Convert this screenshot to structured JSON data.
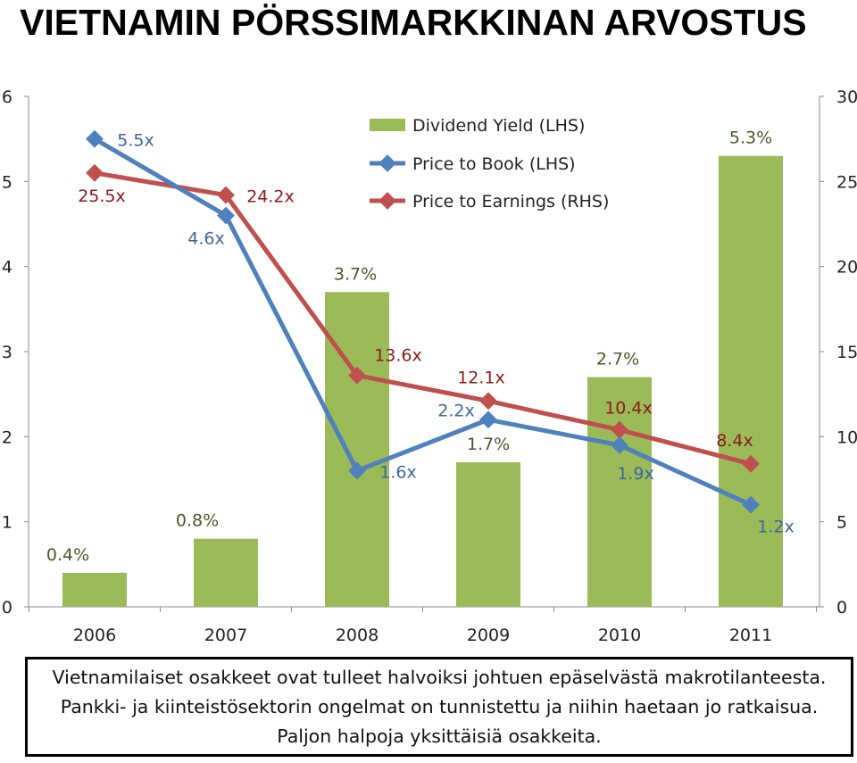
{
  "title": "VIETNAMIN PÖRSSIMARKKINAN ARVOSTUS",
  "chart_data": {
    "type": "bar+line",
    "categories": [
      "2006",
      "2007",
      "2008",
      "2009",
      "2010",
      "2011"
    ],
    "left_axis": {
      "ylim": [
        0,
        6
      ],
      "ticks": [
        "0",
        "1",
        "2",
        "3",
        "4",
        "5",
        "6"
      ]
    },
    "right_axis": {
      "ylim": [
        0,
        30
      ],
      "ticks": [
        "0",
        "5",
        "10",
        "15",
        "20",
        "25",
        "30"
      ]
    },
    "grid": false,
    "legend_position": "top-center",
    "series": [
      {
        "name": "Dividend Yield (LHS)",
        "type": "bar",
        "axis": "left",
        "color": "#9bbb59",
        "values": [
          0.4,
          0.8,
          3.7,
          1.7,
          2.7,
          5.3
        ],
        "labels": [
          "0.4%",
          "0.8%",
          "3.7%",
          "1.7%",
          "2.7%",
          "5.3%"
        ]
      },
      {
        "name": "Price to Book (LHS)",
        "type": "line",
        "axis": "left",
        "color": "#4f81bd",
        "values": [
          5.5,
          4.6,
          1.6,
          2.2,
          1.9,
          1.2
        ],
        "labels": [
          "5.5x",
          "4.6x",
          "1.6x",
          "2.2x",
          "1.9x",
          "1.2x"
        ]
      },
      {
        "name": "Price to Earnings (RHS)",
        "type": "line",
        "axis": "right",
        "color": "#c0504d",
        "values": [
          25.5,
          24.2,
          13.6,
          12.1,
          10.4,
          8.4
        ],
        "labels": [
          "25.5x",
          "24.2x",
          "13.6x",
          "12.1x",
          "10.4x",
          "8.4x"
        ]
      }
    ]
  },
  "caption": [
    "Vietnamilaiset osakkeet ovat tulleet halvoiksi johtuen epäselvästä makrotilanteesta.",
    "Pankki- ja kiinteistösektorin ongelmat on tunnistettu ja niihin haetaan jo ratkaisua.",
    "Paljon halpoja yksittäisiä osakkeita."
  ]
}
